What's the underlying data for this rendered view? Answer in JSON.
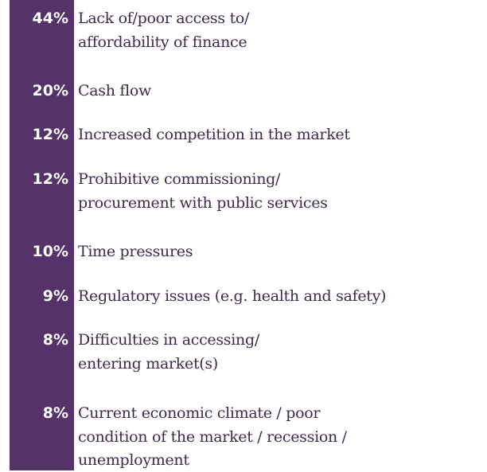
{
  "items": [
    {
      "percent": "44%",
      "lines": [
        "Lack of/poor access to/",
        "affordability of finance"
      ]
    },
    {
      "percent": "20%",
      "lines": [
        "Cash flow"
      ]
    },
    {
      "percent": "12%",
      "lines": [
        "Increased competition in the market"
      ]
    },
    {
      "percent": "12%",
      "lines": [
        "Prohibitive commissioning/",
        "procurement with public services"
      ]
    },
    {
      "percent": "10%",
      "lines": [
        "Time pressures"
      ]
    },
    {
      "percent": "9%",
      "lines": [
        "Regulatory issues (e.g. health and safety)"
      ]
    },
    {
      "percent": "8%",
      "lines": [
        "Difficulties in accessing/",
        "entering market(s)"
      ]
    },
    {
      "percent": "8%",
      "lines": [
        "Current economic climate / poor",
        "condition of the market / recession /",
        "unemployment"
      ]
    }
  ]
}
